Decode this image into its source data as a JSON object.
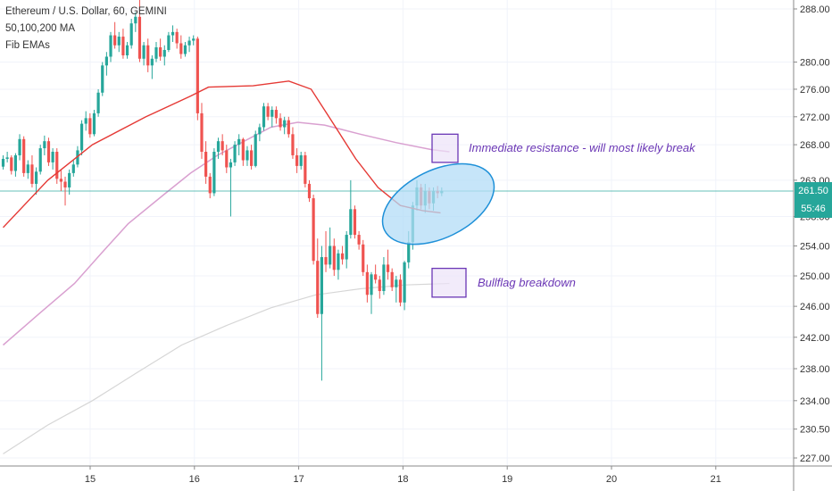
{
  "legend": {
    "symbol": "Ethereum / U.S. Dollar, 60, GEMINI",
    "studies": [
      "50,100,200 MA",
      "Fib EMAs"
    ]
  },
  "annotations": {
    "resistance": "Immediate resistance - will most likely break",
    "bullflag": "Bullflag breakdown"
  },
  "price_tags": {
    "last_price": "261.50",
    "countdown": "55:46"
  },
  "colors": {
    "up": "#26a69a",
    "down": "#ef5350",
    "ma50": "#e53935",
    "ma100": "#d9a0d0",
    "ma200": "#d6d6d6",
    "annotation": "#6a36b5",
    "ellipse_fill": "#b3dcf7",
    "ellipse_stroke": "#1e90d8"
  },
  "chart_data": {
    "type": "candlestick",
    "x_ticks": [
      "15",
      "16",
      "17",
      "18",
      "19",
      "20",
      "21"
    ],
    "y_ticks": [
      "227.00",
      "230.50",
      "234.00",
      "238.00",
      "242.00",
      "246.00",
      "250.00",
      "254.00",
      "258.00",
      "263.00",
      "268.00",
      "272.00",
      "276.00",
      "280.00",
      "288.00"
    ],
    "last_price": 261.5,
    "candles": [
      [
        264.9,
        266.5,
        264.5,
        266.0
      ],
      [
        266.0,
        267.0,
        265.5,
        266.2
      ],
      [
        266.2,
        266.5,
        263.8,
        264.3
      ],
      [
        264.3,
        266.8,
        263.5,
        266.5
      ],
      [
        266.5,
        269.5,
        265.8,
        268.8
      ],
      [
        268.8,
        269.2,
        263.5,
        264.0
      ],
      [
        264.0,
        265.8,
        263.2,
        265.2
      ],
      [
        265.2,
        266.5,
        262.0,
        262.5
      ],
      [
        262.5,
        264.8,
        261.0,
        264.2
      ],
      [
        264.2,
        268.0,
        263.8,
        267.5
      ],
      [
        267.5,
        269.3,
        266.5,
        268.5
      ],
      [
        268.5,
        269.0,
        265.0,
        265.5
      ],
      [
        265.5,
        267.5,
        264.5,
        267.0
      ],
      [
        267.0,
        267.5,
        262.5,
        263.2
      ],
      [
        263.2,
        264.5,
        261.5,
        262.8
      ],
      [
        262.8,
        263.5,
        259.5,
        262.0
      ],
      [
        262.0,
        264.5,
        261.0,
        264.0
      ],
      [
        264.0,
        265.8,
        263.5,
        265.2
      ],
      [
        265.2,
        267.8,
        264.8,
        267.2
      ],
      [
        267.2,
        271.5,
        266.5,
        271.0
      ],
      [
        271.0,
        272.8,
        270.0,
        271.8
      ],
      [
        271.8,
        272.5,
        269.0,
        269.5
      ],
      [
        269.5,
        273.0,
        269.2,
        272.5
      ],
      [
        272.5,
        276.0,
        272.0,
        275.5
      ],
      [
        275.5,
        280.0,
        275.0,
        279.5
      ],
      [
        279.5,
        281.5,
        278.0,
        280.8
      ],
      [
        280.8,
        284.5,
        280.0,
        284.0
      ],
      [
        284.0,
        286.0,
        282.0,
        282.5
      ],
      [
        282.5,
        284.5,
        281.5,
        283.8
      ],
      [
        283.8,
        285.0,
        280.5,
        281.0
      ],
      [
        281.0,
        283.0,
        280.5,
        282.5
      ],
      [
        282.5,
        286.5,
        282.0,
        285.8
      ],
      [
        285.8,
        287.5,
        284.5,
        286.8
      ],
      [
        286.8,
        289.5,
        280.0,
        280.5
      ],
      [
        280.5,
        283.0,
        279.5,
        282.5
      ],
      [
        282.5,
        283.5,
        278.5,
        279.5
      ],
      [
        279.5,
        281.0,
        277.5,
        280.5
      ],
      [
        280.5,
        283.0,
        280.0,
        282.2
      ],
      [
        282.2,
        283.5,
        280.2,
        280.8
      ],
      [
        280.8,
        282.5,
        279.5,
        281.8
      ],
      [
        281.8,
        284.5,
        281.5,
        284.0
      ],
      [
        284.0,
        285.5,
        283.0,
        284.5
      ],
      [
        284.5,
        285.0,
        282.0,
        282.8
      ],
      [
        282.8,
        284.0,
        280.5,
        281.2
      ],
      [
        281.2,
        283.0,
        280.8,
        282.5
      ],
      [
        282.5,
        283.8,
        281.5,
        283.2
      ],
      [
        283.2,
        284.0,
        282.5,
        283.5
      ],
      [
        283.5,
        283.8,
        271.5,
        272.5
      ],
      [
        272.5,
        274.0,
        266.0,
        267.0
      ],
      [
        267.0,
        268.5,
        262.5,
        263.5
      ],
      [
        263.5,
        264.0,
        260.5,
        261.2
      ],
      [
        261.2,
        267.5,
        260.8,
        267.0
      ],
      [
        267.0,
        269.0,
        266.0,
        268.5
      ],
      [
        268.5,
        269.5,
        266.5,
        267.2
      ],
      [
        267.2,
        268.0,
        264.0,
        264.8
      ],
      [
        264.8,
        266.0,
        258.0,
        265.5
      ],
      [
        265.5,
        268.5,
        265.0,
        268.0
      ],
      [
        268.0,
        269.5,
        266.5,
        268.8
      ],
      [
        268.8,
        269.0,
        265.0,
        265.8
      ],
      [
        265.8,
        267.8,
        265.0,
        267.2
      ],
      [
        267.2,
        268.0,
        264.5,
        265.0
      ],
      [
        265.0,
        270.0,
        264.8,
        269.5
      ],
      [
        269.5,
        271.0,
        268.5,
        270.5
      ],
      [
        270.5,
        274.0,
        270.0,
        273.5
      ],
      [
        273.5,
        274.0,
        271.5,
        272.0
      ],
      [
        272.0,
        273.5,
        270.5,
        273.0
      ],
      [
        273.0,
        273.5,
        271.0,
        271.8
      ],
      [
        271.8,
        272.5,
        270.0,
        270.5
      ],
      [
        270.5,
        272.0,
        269.5,
        271.5
      ],
      [
        271.5,
        272.0,
        269.0,
        269.5
      ],
      [
        269.5,
        270.5,
        266.0,
        266.5
      ],
      [
        266.5,
        267.5,
        264.0,
        265.0
      ],
      [
        265.0,
        267.0,
        264.5,
        266.5
      ],
      [
        266.5,
        267.0,
        262.0,
        262.5
      ],
      [
        262.5,
        263.0,
        260.0,
        260.5
      ],
      [
        260.5,
        261.0,
        251.5,
        252.0
      ],
      [
        252.0,
        255.0,
        244.5,
        245.0
      ],
      [
        245.0,
        254.0,
        236.5,
        252.5
      ],
      [
        252.5,
        256.0,
        250.5,
        251.5
      ],
      [
        251.5,
        256.5,
        251.0,
        254.0
      ],
      [
        254.0,
        255.0,
        250.0,
        250.8
      ],
      [
        250.8,
        253.5,
        249.5,
        253.0
      ],
      [
        253.0,
        254.0,
        251.5,
        252.2
      ],
      [
        252.2,
        256.0,
        251.0,
        255.5
      ],
      [
        255.5,
        263.0,
        255.0,
        259.0
      ],
      [
        259.0,
        259.5,
        255.0,
        255.5
      ],
      [
        255.5,
        256.0,
        253.5,
        254.2
      ],
      [
        254.2,
        254.8,
        250.0,
        250.5
      ],
      [
        250.5,
        251.5,
        246.5,
        247.5
      ],
      [
        247.5,
        250.5,
        245.0,
        250.2
      ],
      [
        250.2,
        251.5,
        249.0,
        249.5
      ],
      [
        249.5,
        250.0,
        247.0,
        248.0
      ],
      [
        248.0,
        252.5,
        247.5,
        251.5
      ],
      [
        251.5,
        253.5,
        249.5,
        250.5
      ],
      [
        250.5,
        251.0,
        248.0,
        248.5
      ],
      [
        248.5,
        250.0,
        246.5,
        249.5
      ],
      [
        249.5,
        250.2,
        246.0,
        246.5
      ],
      [
        246.5,
        252.0,
        245.5,
        251.8
      ],
      [
        251.8,
        256.0,
        251.0,
        254.5
      ],
      [
        254.5,
        260.0,
        253.5,
        259.5
      ],
      [
        259.5,
        263.0,
        258.8,
        262.0
      ],
      [
        262.0,
        262.5,
        259.0,
        259.5
      ],
      [
        259.5,
        262.5,
        258.5,
        261.5
      ],
      [
        261.5,
        262.0,
        259.0,
        259.8
      ],
      [
        259.8,
        262.0,
        258.8,
        261.5
      ],
      [
        261.5,
        262.2,
        260.5,
        261.2
      ],
      [
        261.2,
        262.0,
        260.8,
        261.5
      ]
    ],
    "ma50": [
      [
        0,
        256.5
      ],
      [
        50,
        263
      ],
      [
        100,
        268
      ],
      [
        160,
        272
      ],
      [
        210,
        275
      ],
      [
        230,
        276.3
      ],
      [
        280,
        276.5
      ],
      [
        320,
        277.2
      ],
      [
        345,
        276
      ],
      [
        370,
        271
      ],
      [
        395,
        266
      ],
      [
        420,
        262
      ],
      [
        445,
        259.5
      ],
      [
        470,
        258.8
      ],
      [
        490,
        258.5
      ]
    ],
    "ma100": [
      [
        0,
        241
      ],
      [
        40,
        245
      ],
      [
        80,
        249
      ],
      [
        110,
        253
      ],
      [
        140,
        257
      ],
      [
        180,
        261
      ],
      [
        210,
        264
      ],
      [
        240,
        266.5
      ],
      [
        270,
        268.5
      ],
      [
        300,
        270.5
      ],
      [
        330,
        271.2
      ],
      [
        360,
        270.8
      ],
      [
        400,
        269.5
      ],
      [
        440,
        268.3
      ],
      [
        480,
        267.3
      ],
      [
        500,
        267
      ]
    ],
    "ma200": [
      [
        0,
        227.5
      ],
      [
        50,
        231
      ],
      [
        100,
        234
      ],
      [
        150,
        237.5
      ],
      [
        200,
        241
      ],
      [
        250,
        243.5
      ],
      [
        300,
        245.8
      ],
      [
        350,
        247.5
      ],
      [
        400,
        248.3
      ],
      [
        450,
        248.8
      ],
      [
        500,
        249
      ]
    ],
    "resistance_box": {
      "price_hi": 269.5,
      "price_lo": 265.5
    },
    "bullflag_box": {
      "price_hi": 251.0,
      "price_lo": 247.2
    },
    "ellipse_center_price": 259.7
  }
}
